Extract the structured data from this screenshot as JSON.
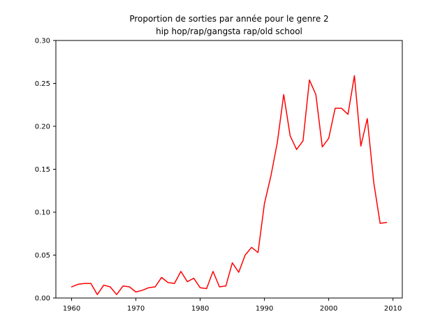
{
  "chart_data": {
    "type": "line",
    "title_line1": "Proportion de sorties par année pour le genre 2",
    "title_line2": "hip hop/rap/gangsta rap/old school",
    "xlabel": "",
    "ylabel": "",
    "xlim": [
      1957.55,
      2011.45
    ],
    "ylim": [
      0,
      0.3
    ],
    "xticks": [
      1960,
      1970,
      1980,
      1990,
      2000,
      2010
    ],
    "yticks": [
      0.0,
      0.05,
      0.1,
      0.15,
      0.2,
      0.25,
      0.3
    ],
    "ytick_labels": [
      "0.00",
      "0.05",
      "0.10",
      "0.15",
      "0.20",
      "0.25",
      "0.30"
    ],
    "grid": false,
    "series": [
      {
        "color": "#ff0000",
        "x": [
          1960,
          1961,
          1962,
          1963,
          1964,
          1965,
          1966,
          1967,
          1968,
          1969,
          1970,
          1971,
          1972,
          1973,
          1974,
          1975,
          1976,
          1977,
          1978,
          1979,
          1980,
          1981,
          1982,
          1983,
          1984,
          1985,
          1986,
          1987,
          1988,
          1989,
          1990,
          1991,
          1992,
          1993,
          1994,
          1995,
          1996,
          1997,
          1998,
          1999,
          2000,
          2001,
          2002,
          2003,
          2004,
          2005,
          2006,
          2007,
          2008,
          2009
        ],
        "y": [
          0.013,
          0.016,
          0.017,
          0.017,
          0.004,
          0.015,
          0.013,
          0.004,
          0.014,
          0.013,
          0.007,
          0.009,
          0.012,
          0.013,
          0.024,
          0.018,
          0.017,
          0.031,
          0.019,
          0.023,
          0.012,
          0.011,
          0.031,
          0.013,
          0.014,
          0.041,
          0.03,
          0.05,
          0.059,
          0.053,
          0.11,
          0.142,
          0.181,
          0.237,
          0.189,
          0.173,
          0.183,
          0.254,
          0.237,
          0.176,
          0.186,
          0.221,
          0.221,
          0.214,
          0.259,
          0.177,
          0.209,
          0.135,
          0.087,
          0.088
        ]
      }
    ]
  }
}
